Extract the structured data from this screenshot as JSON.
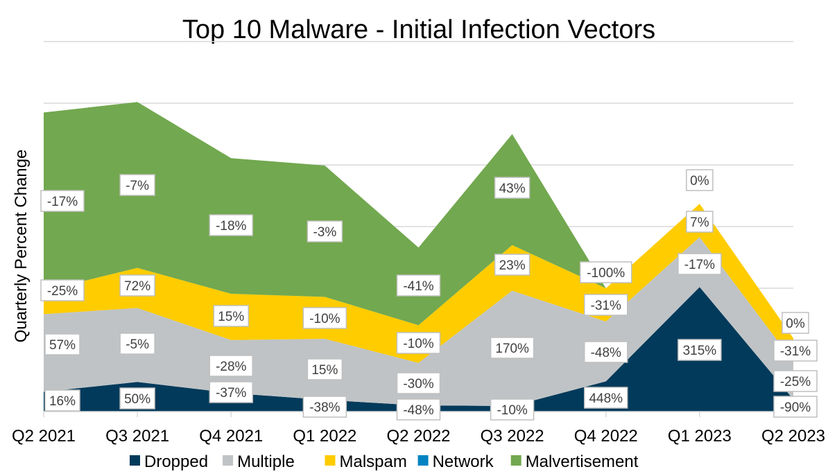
{
  "chart_data": {
    "type": "area",
    "stacked": true,
    "title": "Top 10 Malware - Initial Infection Vectors",
    "xlabel": "",
    "ylabel": "Quarterly Percent Change",
    "ylim": [
      0,
      60
    ],
    "grid": true,
    "y_tick_labels_shown": false,
    "legend_position": "bottom",
    "categories": [
      "Q2 2021",
      "Q3 2021",
      "Q4 2021",
      "Q1 2022",
      "Q2 2022",
      "Q3 2022",
      "Q4 2022",
      "Q1 2023",
      "Q2 2023"
    ],
    "series": [
      {
        "name": "Dropped",
        "color": "#023a5b",
        "values": [
          3.2,
          4.8,
          3.0,
          1.9,
          1.0,
          0.9,
          4.9,
          20.2,
          2.0
        ],
        "labels": [
          "16%",
          "50%",
          "-37%",
          "-38%",
          "-48%",
          "-10%",
          "448%",
          "315%",
          "-90%"
        ]
      },
      {
        "name": "Multiple",
        "color": "#bfc3c5",
        "values": [
          12.6,
          12.0,
          8.6,
          9.9,
          6.9,
          18.7,
          9.7,
          8.1,
          6.1
        ],
        "labels": [
          "57%",
          "-5%",
          "-28%",
          "15%",
          "-30%",
          "170%",
          "-48%",
          "-17%",
          "-25%"
        ]
      },
      {
        "name": "Malspam",
        "color": "#ffcc00",
        "values": [
          3.8,
          6.5,
          7.5,
          6.8,
          6.1,
          7.4,
          5.4,
          5.4,
          3.8
        ],
        "labels": [
          "-25%",
          "72%",
          "15%",
          "-10%",
          "-10%",
          "23%",
          "-31%",
          "7%",
          "-31%"
        ]
      },
      {
        "name": "Network",
        "color": "#0083c1",
        "values": [
          0,
          0,
          0,
          0,
          0,
          0,
          0,
          0,
          0
        ],
        "labels": []
      },
      {
        "name": "Malvertisement",
        "color": "#72a84f",
        "values": [
          28.9,
          26.9,
          22.0,
          21.3,
          12.6,
          18.0,
          0,
          0,
          0
        ],
        "labels": [
          "-17%",
          "-7%",
          "-18%",
          "-3%",
          "-41%",
          "43%",
          "-100%",
          "0%",
          "0%"
        ]
      }
    ]
  }
}
